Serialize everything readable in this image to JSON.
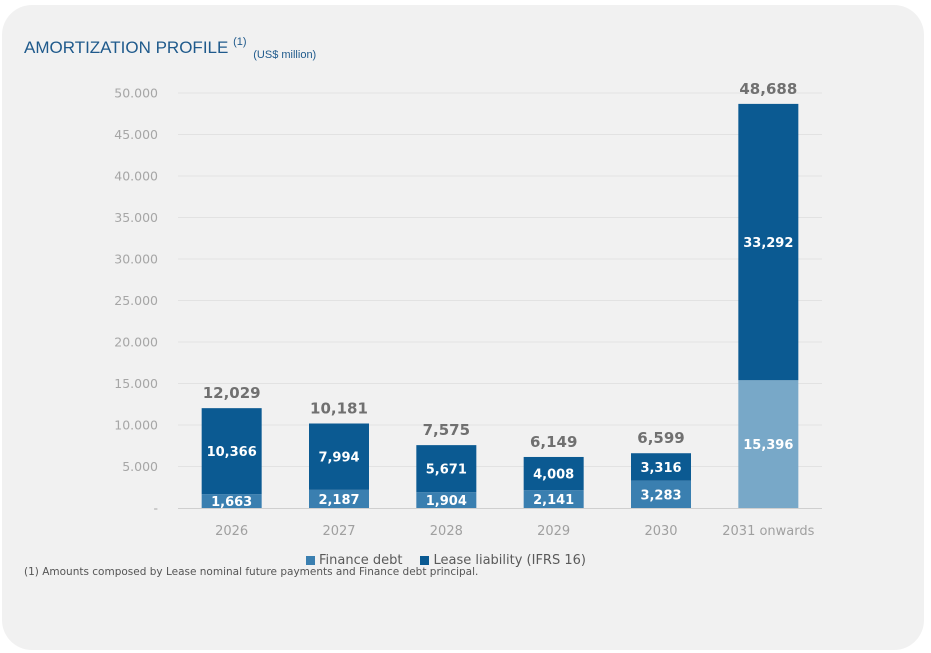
{
  "header": {
    "title": "AMORTIZATION PROFILE",
    "superscript": "(1)",
    "unit": "(US$ million)"
  },
  "footnote": "(1) Amounts composed by Lease nominal future payments and Finance debt principal.",
  "colors": {
    "finance_debt": "#3a7fb0",
    "lease_liability": "#0b5a92",
    "finance_debt_last": "#78a8c8",
    "grid": "#e2e2e2",
    "axis": "#cfcfcf"
  },
  "chart_data": {
    "type": "bar",
    "stacked": true,
    "title": "AMORTIZATION PROFILE (1) (US$ million)",
    "xlabel": "",
    "ylabel": "",
    "ylim": [
      0,
      50000
    ],
    "yticks": [
      0,
      5000,
      10000,
      15000,
      20000,
      25000,
      30000,
      35000,
      40000,
      45000,
      50000
    ],
    "ytick_labels": [
      "-",
      "5.000",
      "10.000",
      "15.000",
      "20.000",
      "25.000",
      "30.000",
      "35.000",
      "40.000",
      "45.000",
      "50.000"
    ],
    "grid": true,
    "categories": [
      "2026",
      "2027",
      "2028",
      "2029",
      "2030",
      "2031 onwards"
    ],
    "series": [
      {
        "name": "Finance debt",
        "values": [
          1663,
          2187,
          1904,
          2141,
          3283,
          15396
        ],
        "labels": [
          "1,663",
          "2,187",
          "1,904",
          "2,141",
          "3,283",
          "15,396"
        ]
      },
      {
        "name": "Lease liability (IFRS 16)",
        "values": [
          10366,
          7994,
          5671,
          4008,
          3316,
          33292
        ],
        "labels": [
          "10,366",
          "7,994",
          "5,671",
          "4,008",
          "3,316",
          "33,292"
        ]
      }
    ],
    "totals": [
      12029,
      10181,
      7575,
      6149,
      6599,
      48688
    ],
    "total_labels": [
      "12,029",
      "10,181",
      "7,575",
      "6,149",
      "6,599",
      "48,688"
    ],
    "legend": [
      "Finance debt",
      "Lease liability (IFRS 16)"
    ],
    "legend_position": "bottom"
  }
}
